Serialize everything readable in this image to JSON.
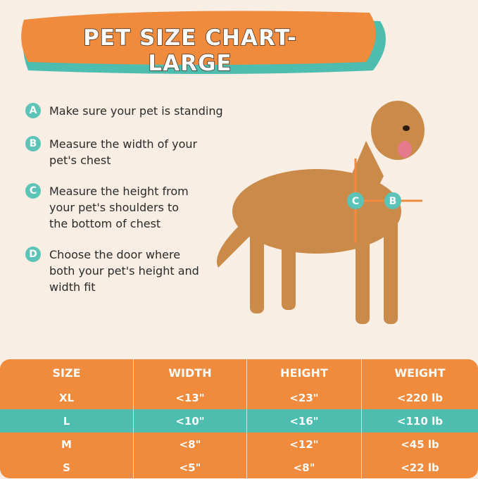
{
  "header": {
    "title": "PET SIZE CHART-LARGE"
  },
  "steps": [
    {
      "letter": "A",
      "text": "Make sure your pet is standing"
    },
    {
      "letter": "B",
      "text": "Measure the width of your pet's chest"
    },
    {
      "letter": "C",
      "text": "Measure the height from your pet's shoulders to the bottom of chest"
    },
    {
      "letter": "D",
      "text": "Choose the door where both your pet's height and width fit"
    }
  ],
  "figure": {
    "labels": [
      "C",
      "B"
    ]
  },
  "table": {
    "columns": [
      "SIZE",
      "WIDTH",
      "HEIGHT",
      "WEIGHT"
    ],
    "rows": [
      [
        "XL",
        "<13\"",
        "<23\"",
        "<220 lb"
      ],
      [
        "L",
        "<10\"",
        "<16\"",
        "<110 lb"
      ],
      [
        "M",
        "<8\"",
        "<12\"",
        "<45 lb"
      ],
      [
        "S",
        "<5\"",
        "<8\"",
        "<22 lb"
      ]
    ]
  }
}
